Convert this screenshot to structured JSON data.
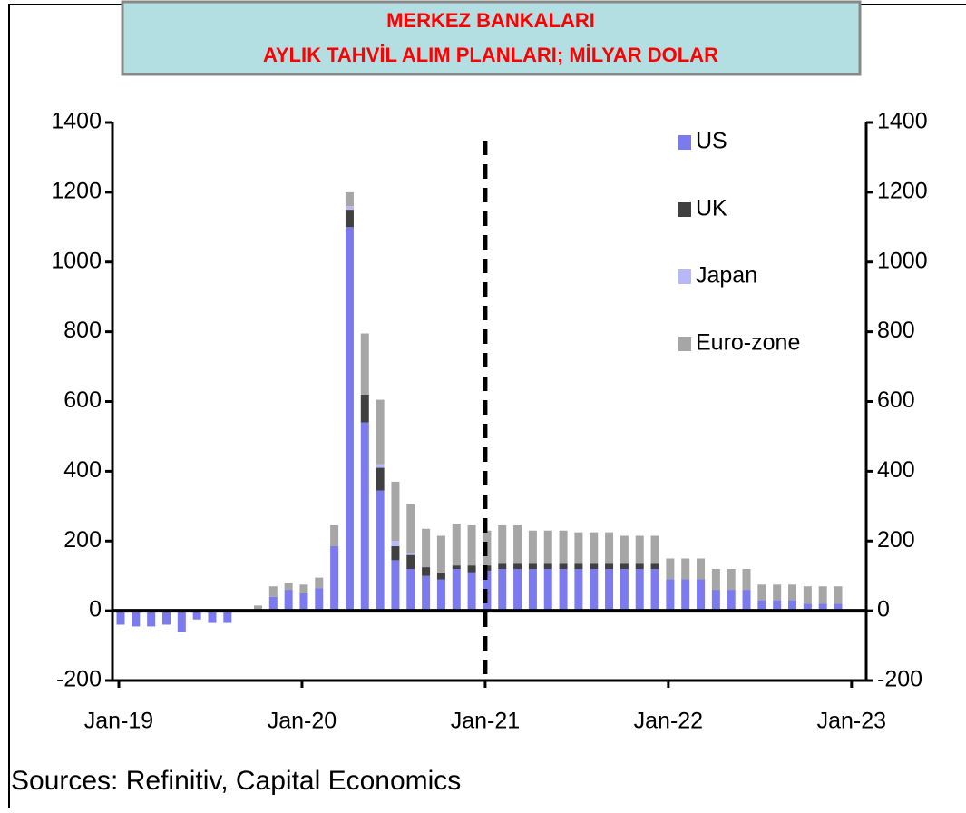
{
  "chart_data": {
    "type": "stacked_bar",
    "title": "MERKEZ BANKALARI",
    "subtitle": "AYLIK TAHVİL ALIM PLANLARI; MİLYAR DOLAR",
    "source": "Sources: Refinitiv, Capital Economics",
    "categories": [
      "Jan-19",
      null,
      null,
      null,
      null,
      null,
      null,
      null,
      null,
      null,
      null,
      null,
      "Jan-20",
      null,
      null,
      null,
      null,
      null,
      null,
      null,
      null,
      null,
      null,
      null,
      "Jan-21",
      null,
      null,
      null,
      null,
      null,
      null,
      null,
      null,
      null,
      null,
      null,
      "Jan-22",
      null,
      null,
      null,
      null,
      null,
      null,
      null,
      null,
      null,
      null,
      null,
      "Jan-23"
    ],
    "series": [
      {
        "name": "US",
        "color": "#7b7bef",
        "values": [
          -40,
          -45,
          -45,
          -40,
          -60,
          -25,
          -35,
          -35,
          0,
          0,
          40,
          60,
          50,
          65,
          185,
          1100,
          540,
          345,
          145,
          120,
          100,
          90,
          120,
          110,
          115,
          120,
          120,
          120,
          120,
          120,
          120,
          120,
          120,
          120,
          120,
          120,
          90,
          90,
          90,
          60,
          60,
          60,
          30,
          30,
          30,
          20,
          20,
          20,
          null
        ]
      },
      {
        "name": "UK",
        "color": "#404040",
        "values": [
          0,
          0,
          0,
          0,
          0,
          0,
          0,
          0,
          0,
          0,
          0,
          0,
          0,
          0,
          0,
          50,
          80,
          65,
          40,
          40,
          25,
          20,
          10,
          20,
          15,
          15,
          15,
          15,
          15,
          15,
          15,
          15,
          15,
          15,
          15,
          15,
          0,
          0,
          0,
          0,
          0,
          0,
          0,
          0,
          0,
          0,
          0,
          0,
          null
        ]
      },
      {
        "name": "Japan",
        "color": "#b8b8f8",
        "values": [
          0,
          0,
          0,
          0,
          0,
          0,
          0,
          0,
          0,
          0,
          0,
          0,
          0,
          0,
          0,
          10,
          0,
          10,
          15,
          5,
          0,
          0,
          0,
          0,
          0,
          0,
          0,
          0,
          0,
          0,
          0,
          0,
          0,
          0,
          0,
          0,
          0,
          0,
          0,
          0,
          0,
          0,
          0,
          0,
          0,
          0,
          0,
          0,
          null
        ]
      },
      {
        "name": "Euro-zone",
        "color": "#a6a6a6",
        "values": [
          0,
          0,
          0,
          0,
          0,
          0,
          0,
          0,
          0,
          15,
          30,
          20,
          25,
          30,
          60,
          40,
          175,
          185,
          170,
          140,
          110,
          105,
          120,
          115,
          100,
          110,
          110,
          95,
          95,
          95,
          90,
          90,
          90,
          80,
          80,
          80,
          60,
          60,
          60,
          60,
          60,
          60,
          45,
          45,
          45,
          50,
          50,
          50,
          null
        ]
      }
    ],
    "ylim": [
      -200,
      1400
    ],
    "yticks": [
      -200,
      0,
      200,
      400,
      600,
      800,
      1000,
      1200,
      1400
    ],
    "y2lim": [
      -200,
      1400
    ],
    "y2ticks": [
      -200,
      0,
      200,
      400,
      600,
      800,
      1000,
      1200,
      1400
    ]
  }
}
